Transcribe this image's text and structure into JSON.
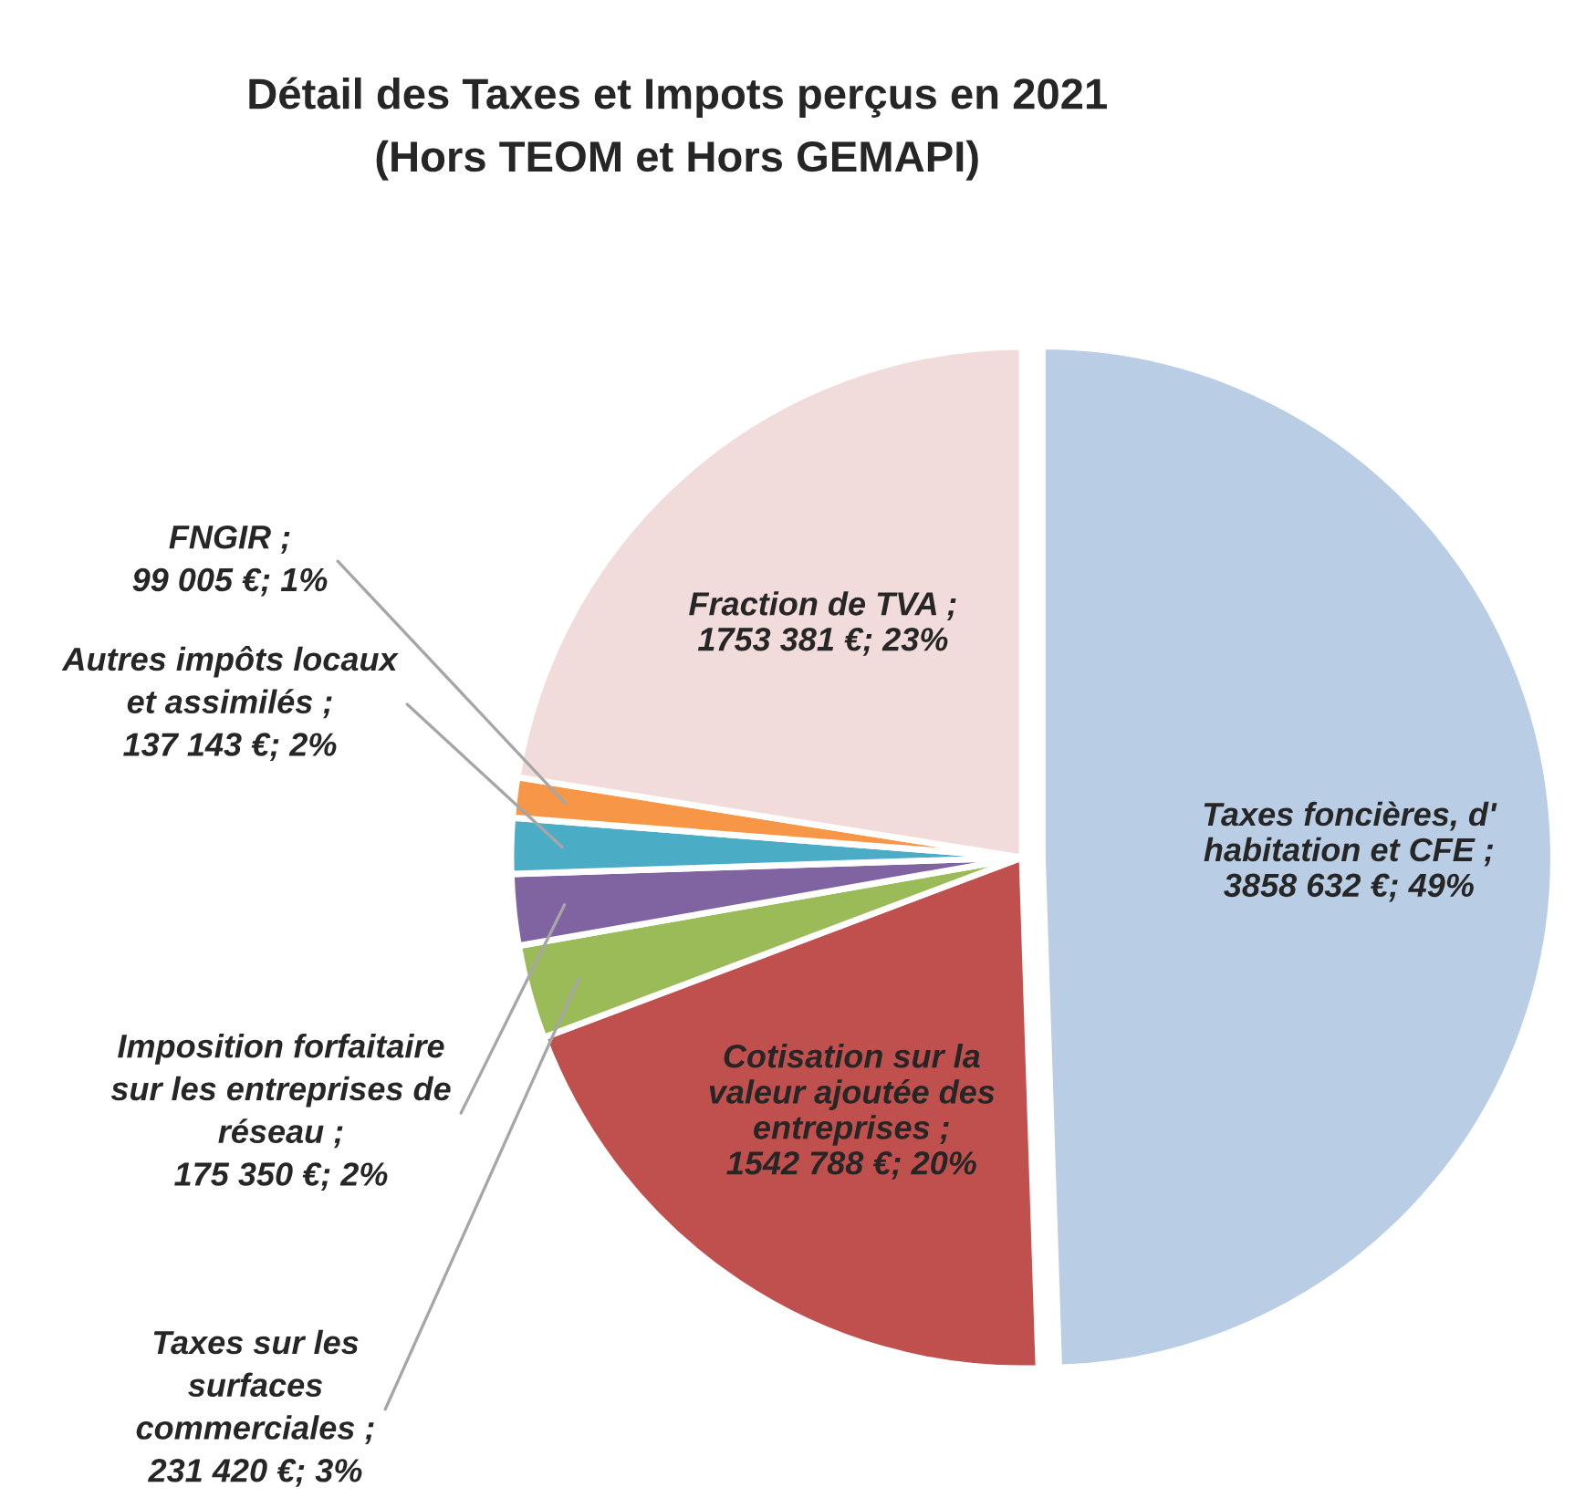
{
  "chart_data": {
    "type": "pie",
    "title": "Détail des Taxes et Impots perçus en 2021",
    "subtitle": "(Hors TEOM et Hors GEMAPI)",
    "categories": [
      "Taxes foncières, d' habitation et CFE",
      "Cotisation sur la valeur ajoutée des entreprises",
      "Taxes sur les surfaces commerciales",
      "Imposition forfaitaire sur les entreprises de réseau",
      "Autres impôts locaux et assimilés",
      "FNGIR",
      "Fraction de TVA"
    ],
    "values": [
      3858632,
      1542788,
      231420,
      175350,
      137143,
      99005,
      1753381
    ],
    "colors": [
      "#b9cde5",
      "#c0504d",
      "#9bbb59",
      "#8064a2",
      "#4bacc6",
      "#f79646",
      "#f2dcdb"
    ],
    "value_labels": [
      "; 3858 632 €; 49%",
      "; 1542 788 €; 20%",
      "; 231 420 €; 3%",
      "; 175 350 €; 2%",
      "; 137 143 €; 2%",
      "; 99 005 €; 1%",
      "; 1753 381 €; 23%"
    ]
  }
}
